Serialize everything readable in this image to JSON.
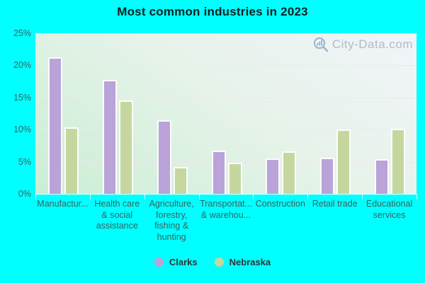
{
  "title": "Most common industries in 2023",
  "watermark": {
    "text": "City-Data.com",
    "icon": "magnifier-with-bars-icon",
    "color": "#b0bcc6"
  },
  "colors": {
    "background": "#00ffff",
    "plot_gradient_top_right": "#f1f4f9",
    "plot_gradient_bottom_left": "#cbeed5",
    "gridline": "#f3e3ee",
    "clarks_bar": "#b9a3d8",
    "nebraska_bar": "#c5d79f",
    "axis_text": "#3d5f5f",
    "title_text": "#102020",
    "legend_text": "#333333"
  },
  "legend": [
    {
      "label": "Clarks",
      "color": "#b9a3d8"
    },
    {
      "label": "Nebraska",
      "color": "#c5d79f"
    }
  ],
  "chart_data": {
    "type": "bar",
    "title": "Most common industries in 2023",
    "categories": [
      "Manufactur...",
      "Health care & social assistance",
      "Agriculture, forestry, fishing & hunting",
      "Transportat... & warehou...",
      "Construction",
      "Retail trade",
      "Educational services"
    ],
    "categories_display": [
      "Manufactur...",
      "Health care\n& social\nassistance",
      "Agriculture,\nforestry,\nfishing &\nhunting",
      "Transportat...\n& warehou...",
      "Construction",
      "Retail trade",
      "Educational\nservices"
    ],
    "series": [
      {
        "name": "Clarks",
        "color": "#b9a3d8",
        "values": [
          21.3,
          17.7,
          11.4,
          6.7,
          5.5,
          5.6,
          5.4
        ]
      },
      {
        "name": "Nebraska",
        "color": "#c5d79f",
        "values": [
          10.3,
          14.5,
          4.2,
          4.8,
          6.6,
          10.0,
          10.1
        ]
      }
    ],
    "xlabel": "",
    "ylabel": "",
    "ylim": [
      0,
      25
    ],
    "yticks": [
      "0%",
      "5%",
      "10%",
      "15%",
      "20%",
      "25%"
    ],
    "ytick_values": [
      0,
      5,
      10,
      15,
      20,
      25
    ],
    "gridline_values": [
      5,
      10,
      15,
      20
    ],
    "grid": true,
    "legend_position": "bottom"
  }
}
